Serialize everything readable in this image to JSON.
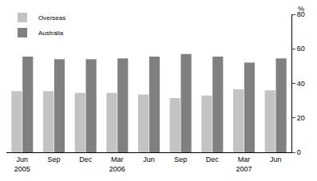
{
  "chart_data": {
    "type": "bar",
    "ylabel": "%",
    "categories": [
      "Jun 2005",
      "Sep",
      "Dec",
      "Mar 2006",
      "Jun",
      "Sep",
      "Dec",
      "Mar 2007",
      "Jun"
    ],
    "series": [
      {
        "name": "Overseas",
        "color": "#c3c3c3",
        "values": [
          35.5,
          35.5,
          34.5,
          34.5,
          33.5,
          31.5,
          33,
          36.5,
          36
        ]
      },
      {
        "name": "Australia",
        "color": "#808080",
        "values": [
          55.5,
          54,
          54,
          54.5,
          55.5,
          57,
          55.5,
          52,
          54.5
        ]
      }
    ],
    "ylim": [
      0,
      80
    ],
    "yticks": [
      0,
      20,
      40,
      60,
      80
    ],
    "grid": true,
    "legend": "top left"
  }
}
